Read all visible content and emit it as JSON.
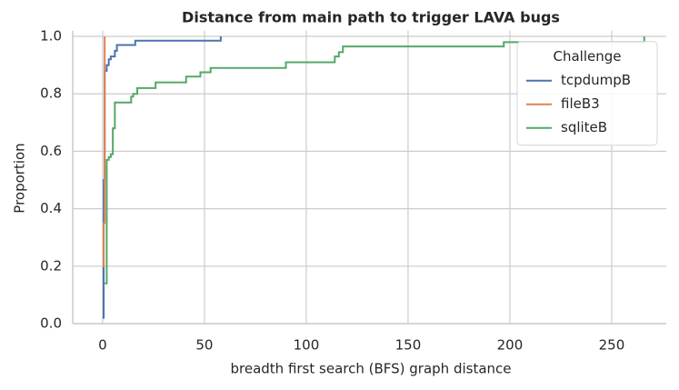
{
  "chart_data": {
    "type": "line",
    "drawstyle": "steps-post",
    "title": "Distance from main path to trigger LAVA bugs",
    "xlabel": "breadth first search (BFS) graph distance",
    "ylabel": "Proportion",
    "xlim": [
      -14.7,
      276.8
    ],
    "ylim": [
      0,
      1.02
    ],
    "xticks": [
      0,
      50,
      100,
      150,
      200,
      250
    ],
    "yticks": [
      {
        "value": 0,
        "label": "0.0"
      },
      0.2,
      0.4,
      0.6,
      0.8,
      {
        "value": 1,
        "label": "1.0"
      }
    ],
    "grid": true,
    "legend": {
      "title": "Challenge",
      "position": "upper right"
    },
    "series": [
      {
        "name": "tcpdumpB",
        "color": "#4c72b0",
        "x": [
          0,
          0.5,
          1,
          2,
          3,
          4,
          6,
          7,
          16,
          58
        ],
        "values": [
          0.02,
          0.5,
          0.88,
          0.9,
          0.92,
          0.93,
          0.95,
          0.97,
          0.985,
          1.0
        ]
      },
      {
        "name": "fileB3",
        "color": "#dd8452",
        "x": [
          0,
          0.5,
          1
        ],
        "values": [
          0.2,
          0.35,
          1.0
        ]
      },
      {
        "name": "sqliteB",
        "color": "#55a868",
        "x": [
          1,
          2,
          3,
          4,
          5,
          6,
          14,
          15,
          17,
          26,
          41,
          48,
          53,
          90,
          114,
          116,
          118,
          197,
          266
        ],
        "values": [
          0.14,
          0.57,
          0.58,
          0.59,
          0.68,
          0.77,
          0.79,
          0.8,
          0.82,
          0.84,
          0.86,
          0.875,
          0.89,
          0.91,
          0.93,
          0.945,
          0.965,
          0.98,
          1.0
        ]
      }
    ]
  }
}
